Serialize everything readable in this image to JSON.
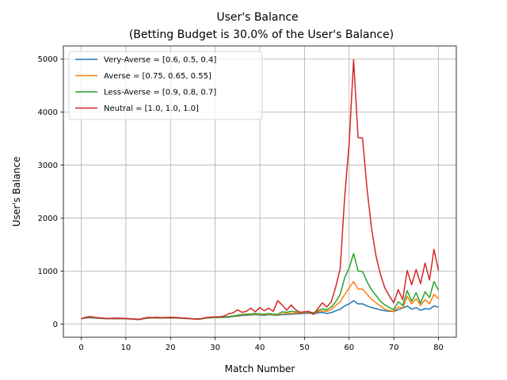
{
  "chart_data": {
    "type": "line",
    "title": "User's Balance",
    "subtitle": "(Betting Budget is 30.0% of the User's Balance)",
    "xlabel": "Match Number",
    "ylabel": "User's Balance",
    "xlim": [
      -4,
      84
    ],
    "ylim": [
      -250,
      5250
    ],
    "xticks": [
      0,
      10,
      20,
      30,
      40,
      50,
      60,
      70,
      80
    ],
    "yticks": [
      0,
      1000,
      2000,
      3000,
      4000,
      5000
    ],
    "grid": true,
    "legend_position": "upper-left",
    "x": [
      0,
      1,
      2,
      3,
      4,
      5,
      6,
      7,
      8,
      9,
      10,
      11,
      12,
      13,
      14,
      15,
      16,
      17,
      18,
      19,
      20,
      21,
      22,
      23,
      24,
      25,
      26,
      27,
      28,
      29,
      30,
      31,
      32,
      33,
      34,
      35,
      36,
      37,
      38,
      39,
      40,
      41,
      42,
      43,
      44,
      45,
      46,
      47,
      48,
      49,
      50,
      51,
      52,
      53,
      54,
      55,
      56,
      57,
      58,
      59,
      60,
      61,
      62,
      63,
      64,
      65,
      66,
      67,
      68,
      69,
      70,
      71,
      72,
      73,
      74,
      75,
      76,
      77,
      78,
      79,
      80
    ],
    "series": [
      {
        "name": "Very-Averse = [0.6, 0.5, 0.4]",
        "color": "#1f77b4",
        "values": [
          100,
          115,
          118,
          112,
          106,
          102,
          98,
          100,
          102,
          100,
          98,
          94,
          88,
          82,
          100,
          110,
          112,
          114,
          110,
          112,
          114,
          112,
          108,
          104,
          100,
          95,
          90,
          96,
          110,
          118,
          120,
          122,
          124,
          130,
          140,
          150,
          160,
          165,
          170,
          175,
          170,
          165,
          175,
          170,
          165,
          175,
          180,
          185,
          190,
          195,
          200,
          205,
          195,
          210,
          220,
          200,
          215,
          250,
          280,
          340,
          380,
          440,
          380,
          380,
          340,
          310,
          290,
          270,
          250,
          240,
          235,
          270,
          300,
          340,
          280,
          310,
          260,
          290,
          280,
          340,
          320
        ]
      },
      {
        "name": "Averse = [0.75, 0.65, 0.55]",
        "color": "#ff7f0e",
        "values": [
          100,
          120,
          125,
          118,
          110,
          104,
          100,
          102,
          104,
          102,
          100,
          96,
          90,
          84,
          104,
          114,
          116,
          118,
          114,
          116,
          118,
          116,
          110,
          106,
          102,
          96,
          92,
          98,
          112,
          122,
          124,
          126,
          130,
          136,
          146,
          158,
          170,
          176,
          180,
          186,
          180,
          175,
          185,
          178,
          172,
          190,
          196,
          200,
          205,
          210,
          215,
          220,
          205,
          230,
          250,
          240,
          270,
          350,
          420,
          560,
          680,
          800,
          660,
          660,
          560,
          470,
          400,
          340,
          280,
          250,
          240,
          320,
          300,
          520,
          380,
          480,
          350,
          460,
          380,
          560,
          480
        ]
      },
      {
        "name": "Less-Averse = [0.9, 0.8, 0.7]",
        "color": "#2ca02c",
        "values": [
          100,
          122,
          128,
          120,
          112,
          106,
          102,
          104,
          106,
          104,
          102,
          98,
          92,
          86,
          106,
          116,
          118,
          120,
          116,
          118,
          120,
          118,
          112,
          108,
          104,
          98,
          94,
          100,
          116,
          126,
          128,
          130,
          136,
          142,
          152,
          166,
          180,
          186,
          190,
          196,
          190,
          185,
          196,
          188,
          182,
          230,
          220,
          240,
          230,
          225,
          228,
          230,
          210,
          250,
          290,
          270,
          320,
          420,
          560,
          870,
          1060,
          1330,
          1000,
          990,
          800,
          650,
          540,
          430,
          360,
          310,
          270,
          420,
          350,
          630,
          430,
          590,
          390,
          610,
          500,
          800,
          640
        ]
      },
      {
        "name": "Neutral = [1.0, 1.0, 1.0]",
        "color": "#d62728",
        "values": [
          100,
          130,
          140,
          128,
          118,
          110,
          105,
          108,
          110,
          108,
          105,
          100,
          94,
          88,
          110,
          125,
          122,
          128,
          120,
          124,
          128,
          126,
          118,
          112,
          106,
          100,
          96,
          104,
          122,
          132,
          134,
          136,
          150,
          195,
          210,
          270,
          220,
          240,
          300,
          230,
          310,
          250,
          300,
          240,
          440,
          360,
          260,
          360,
          270,
          220,
          230,
          240,
          180,
          290,
          400,
          320,
          420,
          700,
          1050,
          2400,
          3400,
          4990,
          3520,
          3510,
          2560,
          1820,
          1290,
          940,
          680,
          530,
          400,
          650,
          460,
          1010,
          740,
          1030,
          760,
          1150,
          830,
          1410,
          1010
        ]
      }
    ]
  }
}
